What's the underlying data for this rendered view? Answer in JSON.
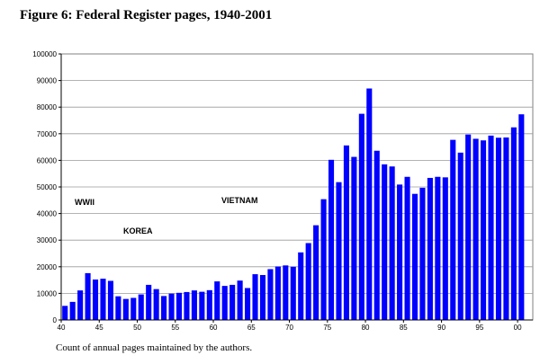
{
  "title": "Figure 6:  Federal Register pages, 1940-2001",
  "caption": "Count of annual pages maintained by the authors.",
  "chart_data": {
    "type": "bar",
    "title": "Figure 6:  Federal Register pages, 1940-2001",
    "xlabel": "",
    "ylabel": "",
    "ylim": [
      0,
      100000
    ],
    "yticks": [
      0,
      10000,
      20000,
      30000,
      40000,
      50000,
      60000,
      70000,
      80000,
      90000,
      100000
    ],
    "xtick_labels": [
      "40",
      "45",
      "50",
      "55",
      "60",
      "65",
      "70",
      "75",
      "80",
      "85",
      "90",
      "95",
      "00"
    ],
    "bar_color": "#0000ff",
    "grid": true,
    "categories": [
      1940,
      1941,
      1942,
      1943,
      1944,
      1945,
      1946,
      1947,
      1948,
      1949,
      1950,
      1951,
      1952,
      1953,
      1954,
      1955,
      1956,
      1957,
      1958,
      1959,
      1960,
      1961,
      1962,
      1963,
      1964,
      1965,
      1966,
      1967,
      1968,
      1969,
      1970,
      1971,
      1972,
      1973,
      1974,
      1975,
      1976,
      1977,
      1978,
      1979,
      1980,
      1981,
      1982,
      1983,
      1984,
      1985,
      1986,
      1987,
      1988,
      1989,
      1990,
      1991,
      1992,
      1993,
      1994,
      1995,
      1996,
      1997,
      1998,
      1999,
      2000,
      2001
    ],
    "values": [
      5300,
      6800,
      11100,
      17600,
      15200,
      15500,
      14700,
      8900,
      7900,
      8300,
      9600,
      13200,
      11600,
      9000,
      9900,
      10200,
      10500,
      11100,
      10600,
      11200,
      14500,
      12800,
      13200,
      14800,
      12000,
      17200,
      16900,
      19100,
      20100,
      20500,
      20000,
      25400,
      28900,
      35600,
      45400,
      60200,
      51800,
      65600,
      61300,
      77500,
      87000,
      63600,
      58500,
      57700,
      50900,
      53800,
      47400,
      49700,
      53400,
      53800,
      53600,
      67700,
      62900,
      69700,
      68100,
      67500,
      69300,
      68500,
      68600,
      72400,
      77300,
      0
    ]
  },
  "annotations": [
    {
      "text": "WWII"
    },
    {
      "text": "KOREA"
    },
    {
      "text": "VIETNAM"
    }
  ]
}
